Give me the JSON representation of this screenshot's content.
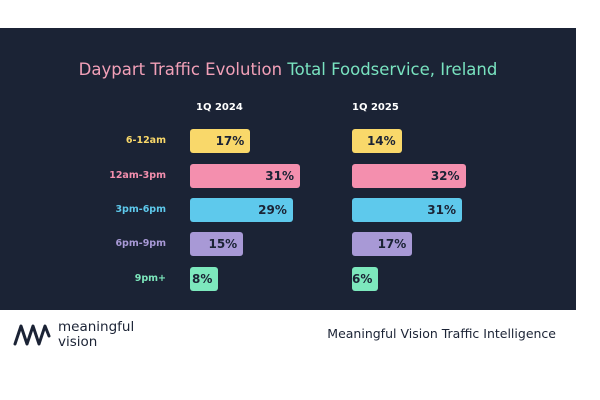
{
  "title_part1": "Daypart Traffic Evolution",
  "title_part2": "Total Foodservice, Ireland",
  "colors": {
    "background": "#1b2335",
    "title_part1": "#f2a0b8",
    "title_part2": "#79e3c0",
    "bar_text": "#1b2335"
  },
  "chart_data": {
    "type": "bar",
    "orientation": "horizontal",
    "categories": [
      "6-12am",
      "12am-3pm",
      "3pm-6pm",
      "6pm-9pm",
      "9pm+"
    ],
    "category_colors": [
      "#f9d86a",
      "#f48fae",
      "#5ec9ec",
      "#a899d6",
      "#7de8bd"
    ],
    "series": [
      {
        "name": "1Q 2024",
        "values": [
          17,
          31,
          29,
          15,
          8
        ],
        "labels": [
          "17%",
          "31%",
          "29%",
          "15%",
          "8%"
        ]
      },
      {
        "name": "1Q 2025",
        "values": [
          14,
          32,
          31,
          17,
          6
        ],
        "labels": [
          "14%",
          "32%",
          "31%",
          "17%",
          "6%"
        ]
      }
    ],
    "unit": "%",
    "xlim": [
      0,
      35
    ],
    "grid": false,
    "legend": "none"
  },
  "footer": {
    "brand_line1": "meaningful",
    "brand_line2": "vision",
    "report_title": "Meaningful Vision Traffic Intelligence"
  }
}
